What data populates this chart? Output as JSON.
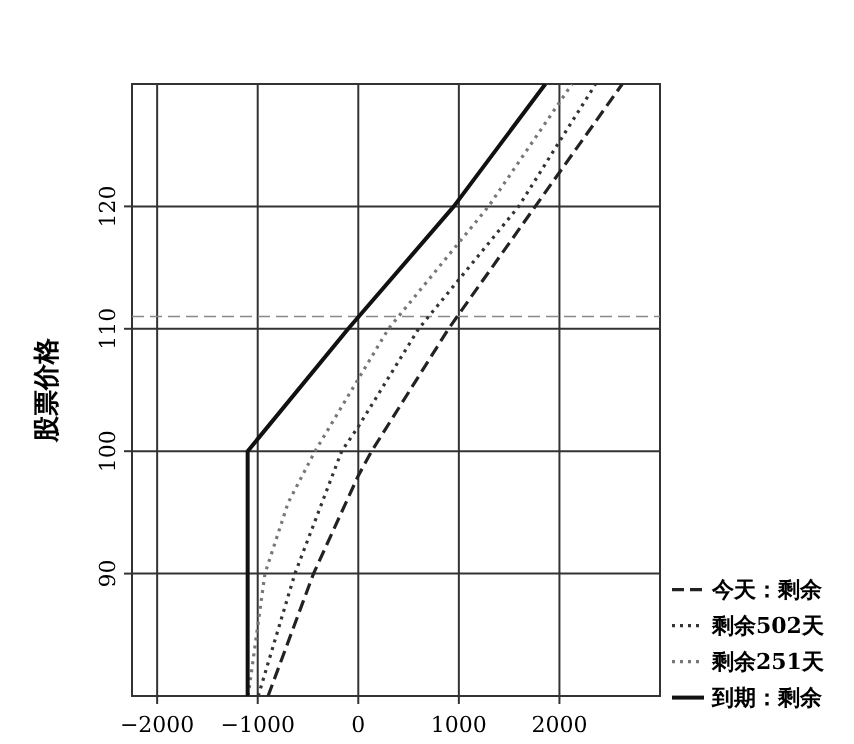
{
  "chart_data": {
    "type": "line",
    "ylabel": "股票价格",
    "xlim": [
      -2250,
      3000
    ],
    "ylim": [
      80,
      130
    ],
    "xticks": [
      -2000,
      -1000,
      0,
      1000,
      2000
    ],
    "yticks": [
      90,
      100,
      110,
      120
    ],
    "grid": true,
    "legend": "right",
    "marker": "none",
    "ref_lines": [
      {
        "axis": "y",
        "value": 111,
        "line_style": "dashed"
      }
    ],
    "series": [
      {
        "name": "今天：剩余",
        "color": "#222222",
        "line_style": "dashed",
        "x": [
          -897,
          -445,
          0,
          133,
          897,
          1760,
          2625
        ],
        "values": [
          80,
          90,
          98,
          100,
          110,
          120,
          130
        ]
      },
      {
        "name": "剩余502天",
        "color": "#333333",
        "line_style": "dotted",
        "x": [
          -995,
          -630,
          -165,
          0,
          600,
          1595,
          2360
        ],
        "values": [
          80,
          90,
          100,
          102,
          110,
          120,
          130
        ]
      },
      {
        "name": "剩余251天",
        "color": "#777777",
        "line_style": "dotted",
        "x": [
          -1095,
          -928,
          -697,
          -430,
          0,
          300,
          1295,
          2125
        ],
        "values": [
          80,
          90,
          95.8,
          100,
          105.9,
          110,
          120,
          130
        ]
      },
      {
        "name": "到期：剩余",
        "color": "#111111",
        "line_style": "solid",
        "x": [
          -1100,
          -1100,
          -100,
          950,
          1860
        ],
        "values": [
          80,
          100,
          110,
          120,
          130
        ]
      }
    ]
  }
}
